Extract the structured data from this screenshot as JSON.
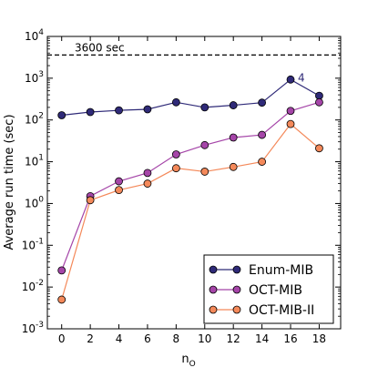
{
  "chart_data": {
    "type": "line",
    "title": "",
    "xlabel": "n",
    "xlabel_subscript": "O",
    "ylabel": "Average run time (sec)",
    "yscale": "log",
    "xlim": [
      -1,
      19.5
    ],
    "ylim": [
      0.001,
      10000
    ],
    "x": [
      0,
      2,
      4,
      6,
      8,
      10,
      12,
      14,
      16,
      18
    ],
    "x_ticks": [
      "0",
      "2",
      "4",
      "6",
      "8",
      "10",
      "12",
      "14",
      "16",
      "18"
    ],
    "y_ticks": [
      {
        "base": "10",
        "exp": "-3",
        "value": 0.001
      },
      {
        "base": "10",
        "exp": "-2",
        "value": 0.01
      },
      {
        "base": "10",
        "exp": "-1",
        "value": 0.1
      },
      {
        "base": "10",
        "exp": "0",
        "value": 1
      },
      {
        "base": "10",
        "exp": "1",
        "value": 10
      },
      {
        "base": "10",
        "exp": "2",
        "value": 100
      },
      {
        "base": "10",
        "exp": "3",
        "value": 1000
      },
      {
        "base": "10",
        "exp": "4",
        "value": 10000
      }
    ],
    "series": [
      {
        "name": "Enum-MIB",
        "color": "#2f2a78",
        "values": [
          130,
          155,
          170,
          180,
          265,
          200,
          225,
          260,
          930,
          380
        ]
      },
      {
        "name": "OCT-MIB",
        "color": "#a545a8",
        "values": [
          0.025,
          1.5,
          3.4,
          5.4,
          15,
          25,
          38,
          44,
          165,
          265
        ]
      },
      {
        "name": "OCT-MIB-II",
        "color": "#f4895a",
        "values": [
          0.005,
          1.2,
          2.1,
          3.0,
          7.0,
          5.8,
          7.5,
          10,
          80,
          21
        ]
      }
    ],
    "reference_line": {
      "value": 3600,
      "label": "3600 sec",
      "style": "dashed"
    },
    "annotation": {
      "text": "4",
      "x": 16,
      "y": 930,
      "series": "Enum-MIB"
    },
    "legend_position": "bottom-right",
    "grid": false
  }
}
